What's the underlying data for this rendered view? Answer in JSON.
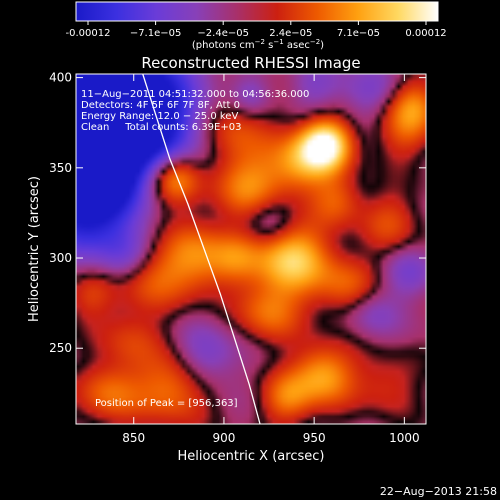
{
  "chart_data": {
    "type": "heatmap",
    "title": "Reconstructed RHESSI Image",
    "xlabel": "Heliocentric X (arcsec)",
    "ylabel": "Heliocentric Y (arcsec)",
    "xlim": [
      818,
      1012
    ],
    "ylim": [
      208,
      402
    ],
    "xticks": [
      850,
      900,
      950,
      1000
    ],
    "yticks": [
      250,
      300,
      350,
      400
    ],
    "grid": false,
    "colorbar": {
      "position": "top",
      "vmin": -0.00012,
      "vmax": 0.00012,
      "tick_labels": [
        "-0.00012",
        "−7.1e−05",
        "−2.4e−05",
        "2.4e−05",
        "7.1e−05",
        "0.00012"
      ],
      "unit_text": "(photons cm",
      "unit_exp1": "−2",
      "unit_mid": " s",
      "unit_exp2": "−1",
      "unit_tail": " asec",
      "unit_exp3": "−2",
      "unit_close": ")",
      "colors": [
        "#1a1ac8",
        "#3b30e0",
        "#6a3cd8",
        "#8840b8",
        "#a8306a",
        "#cc2010",
        "#ee5a00",
        "#ffa010",
        "#ffd860",
        "#ffffff"
      ]
    },
    "annotations": [
      "11−Aug−2011 04:51:32.000 to 04:56:36.000",
      "Detectors: 4F 5F 6F 7F 8F, Att 0",
      "Energy Range: 12.0 − 25.0 keV",
      "Clean     Total counts: 6.39E+03"
    ],
    "peak_label": "Position of Peak = [956,363]",
    "peak": [
      956,
      363
    ],
    "limb_points": [
      [
        855,
        402
      ],
      [
        862,
        380
      ],
      [
        870,
        355
      ],
      [
        880,
        330
      ],
      [
        889,
        305
      ],
      [
        898,
        280
      ],
      [
        906,
        255
      ],
      [
        914,
        230
      ],
      [
        920,
        208
      ]
    ],
    "sources": [
      [
        815,
        392,
        -1.0,
        38
      ],
      [
        822,
        360,
        -1.0,
        28
      ],
      [
        835,
        332,
        -0.55,
        22
      ],
      [
        848,
        390,
        -0.5,
        22
      ],
      [
        875,
        372,
        -0.2,
        18
      ],
      [
        860,
        332,
        0.45,
        14
      ],
      [
        872,
        345,
        0.75,
        10
      ],
      [
        857,
        290,
        0.45,
        14
      ],
      [
        847,
        255,
        0.3,
        12
      ],
      [
        837,
        225,
        0.5,
        12
      ],
      [
        825,
        280,
        0.35,
        10
      ],
      [
        872,
        228,
        0.55,
        14
      ],
      [
        885,
        300,
        0.6,
        14
      ],
      [
        912,
        340,
        0.6,
        14
      ],
      [
        905,
        372,
        0.45,
        14
      ],
      [
        937,
        300,
        0.9,
        14
      ],
      [
        925,
        270,
        0.5,
        12
      ],
      [
        907,
        300,
        0.35,
        10
      ],
      [
        942,
        352,
        0.6,
        12
      ],
      [
        956,
        363,
        1.15,
        10
      ],
      [
        963,
        332,
        0.4,
        10
      ],
      [
        968,
        285,
        0.45,
        12
      ],
      [
        992,
        320,
        0.35,
        12
      ],
      [
        955,
        235,
        0.7,
        12
      ],
      [
        935,
        222,
        0.5,
        10
      ],
      [
        990,
        230,
        0.3,
        12
      ],
      [
        999,
        370,
        0.35,
        12
      ],
      [
        1005,
        385,
        0.5,
        10
      ],
      [
        890,
        245,
        -0.4,
        12
      ],
      [
        925,
        320,
        -0.35,
        10
      ],
      [
        982,
        270,
        -0.3,
        10
      ],
      [
        1002,
        292,
        -0.3,
        10
      ],
      [
        980,
        392,
        -0.3,
        12
      ],
      [
        950,
        395,
        -0.25,
        10
      ],
      [
        845,
        300,
        -0.3,
        10
      ],
      [
        915,
        390,
        -0.3,
        8
      ]
    ]
  },
  "footer": {
    "timestamp": "22−Aug−2013 21:58"
  }
}
